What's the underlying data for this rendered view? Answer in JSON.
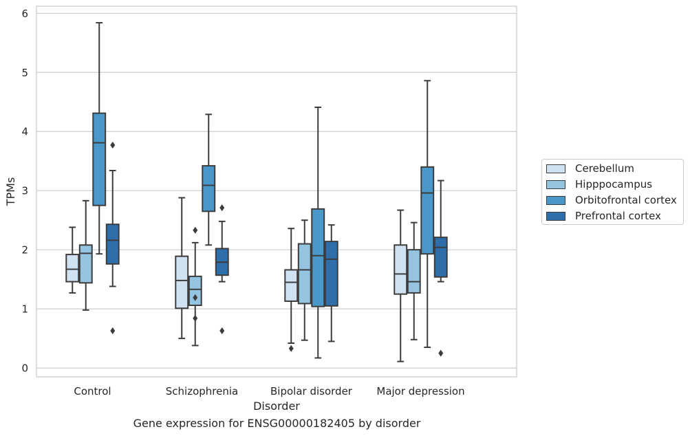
{
  "chart_data": {
    "type": "box",
    "categories": [
      "Control",
      "Schizophrenia",
      "Bipolar disorder",
      "Major depression"
    ],
    "xlabel": "Disorder",
    "ylabel": "TPMs",
    "ylim": [
      -0.15,
      6.12
    ],
    "yticks": [
      0,
      1,
      2,
      3,
      4,
      5,
      6
    ],
    "grid": "horizontal",
    "legend_position": "right, outside",
    "series": [
      {
        "name": "Cerebellum",
        "color": "#d0e1f2",
        "boxes": [
          {
            "whisker_low": 1.27,
            "q1": 1.46,
            "median": 1.67,
            "q3": 1.92,
            "whisker_high": 2.38,
            "outliers": []
          },
          {
            "whisker_low": 0.5,
            "q1": 1.01,
            "median": 1.48,
            "q3": 1.89,
            "whisker_high": 2.88,
            "outliers": []
          },
          {
            "whisker_low": 0.42,
            "q1": 1.13,
            "median": 1.45,
            "q3": 1.66,
            "whisker_high": 2.36,
            "outliers": [
              0.33
            ]
          },
          {
            "whisker_low": 0.11,
            "q1": 1.25,
            "median": 1.59,
            "q3": 2.08,
            "whisker_high": 2.67,
            "outliers": []
          }
        ]
      },
      {
        "name": "Hipppocampus",
        "color": "#94c4df",
        "boxes": [
          {
            "whisker_low": 0.98,
            "q1": 1.44,
            "median": 1.94,
            "q3": 2.08,
            "whisker_high": 2.83,
            "outliers": []
          },
          {
            "whisker_low": 0.38,
            "q1": 1.06,
            "median": 1.33,
            "q3": 1.55,
            "whisker_high": 2.12,
            "outliers": [
              2.33,
              1.19,
              0.84
            ]
          },
          {
            "whisker_low": 0.47,
            "q1": 1.09,
            "median": 1.66,
            "q3": 2.1,
            "whisker_high": 2.5,
            "outliers": []
          },
          {
            "whisker_low": 0.48,
            "q1": 1.27,
            "median": 1.46,
            "q3": 2.0,
            "whisker_high": 2.46,
            "outliers": []
          }
        ]
      },
      {
        "name": "Orbitofrontal cortex",
        "color": "#4a98c9",
        "boxes": [
          {
            "whisker_low": 1.93,
            "q1": 2.75,
            "median": 3.81,
            "q3": 4.31,
            "whisker_high": 5.84,
            "outliers": []
          },
          {
            "whisker_low": 2.08,
            "q1": 2.65,
            "median": 3.09,
            "q3": 3.42,
            "whisker_high": 4.29,
            "outliers": []
          },
          {
            "whisker_low": 0.17,
            "q1": 1.04,
            "median": 1.9,
            "q3": 2.69,
            "whisker_high": 4.41,
            "outliers": []
          },
          {
            "whisker_low": 0.35,
            "q1": 1.93,
            "median": 2.96,
            "q3": 3.4,
            "whisker_high": 4.86,
            "outliers": []
          }
        ]
      },
      {
        "name": "Prefrontal cortex",
        "color": "#2e6fab",
        "boxes": [
          {
            "whisker_low": 1.38,
            "q1": 1.76,
            "median": 2.16,
            "q3": 2.43,
            "whisker_high": 3.34,
            "outliers": [
              3.77,
              0.63
            ]
          },
          {
            "whisker_low": 1.46,
            "q1": 1.57,
            "median": 1.79,
            "q3": 2.02,
            "whisker_high": 2.48,
            "outliers": [
              2.71,
              0.63
            ]
          },
          {
            "whisker_low": 0.45,
            "q1": 1.05,
            "median": 1.84,
            "q3": 2.14,
            "whisker_high": 2.42,
            "outliers": []
          },
          {
            "whisker_low": 1.46,
            "q1": 1.54,
            "median": 2.04,
            "q3": 2.21,
            "whisker_high": 3.17,
            "outliers": [
              0.25
            ]
          }
        ]
      }
    ]
  },
  "caption": "Gene expression for ENSG00000182405 by disorder"
}
